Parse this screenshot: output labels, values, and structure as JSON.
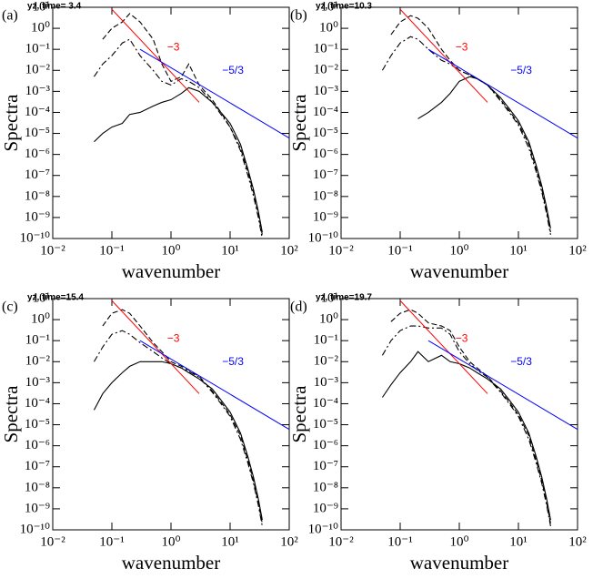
{
  "chart_data": [
    {
      "type": "line",
      "title": "yz, time= 3.4",
      "panel_label": "(a)",
      "xlabel": "wavenumber",
      "ylabel": "Spectra",
      "xlog": true,
      "ylog": true,
      "xlim": [
        0.01,
        100
      ],
      "ylim": [
        1e-10,
        10
      ],
      "xticks": [
        {
          "value": 0.01,
          "label": "10⁻²"
        },
        {
          "value": 0.1,
          "label": "10⁻¹"
        },
        {
          "value": 1,
          "label": "10⁰"
        },
        {
          "value": 10,
          "label": "10¹"
        },
        {
          "value": 100,
          "label": "10²"
        }
      ],
      "yticks": [
        {
          "value": 1e-10,
          "label": "10⁻¹⁰"
        },
        {
          "value": 1e-09,
          "label": "10⁻⁹"
        },
        {
          "value": 1e-08,
          "label": "10⁻⁸"
        },
        {
          "value": 1e-07,
          "label": "10⁻⁷"
        },
        {
          "value": 1e-06,
          "label": "10⁻⁶"
        },
        {
          "value": 1e-05,
          "label": "10⁻⁵"
        },
        {
          "value": 0.0001,
          "label": "10⁻⁴"
        },
        {
          "value": 0.001,
          "label": "10⁻³"
        },
        {
          "value": 0.01,
          "label": "10⁻²"
        },
        {
          "value": 0.1,
          "label": "10⁻¹"
        },
        {
          "value": 1,
          "label": "10⁰"
        },
        {
          "value": 10,
          "label": "10¹"
        }
      ],
      "x": [
        0.05,
        0.07,
        0.1,
        0.15,
        0.2,
        0.3,
        0.5,
        0.7,
        1,
        1.5,
        2,
        3,
        5,
        7,
        10,
        15,
        20,
        25,
        30,
        35,
        40
      ],
      "series": [
        {
          "color": "#000000",
          "dash": "none",
          "values": [
            4e-06,
            1e-05,
            2e-05,
            3e-05,
            8e-05,
            0.0001,
            0.0002,
            0.0003,
            0.0004,
            0.0008,
            0.0015,
            0.001,
            0.0003,
            0.0001,
            3e-05,
            3e-06,
            2e-07,
            2e-08,
            2e-09,
            2e-10,
            null
          ]
        },
        {
          "color": "#000000",
          "dash": "6,3",
          "values": [
            null,
            0.3,
            1,
            2,
            5,
            2,
            0.3,
            0.02,
            0.003,
            0.005,
            0.02,
            0.002,
            0.0004,
            0.0001,
            2e-05,
            2e-06,
            1.5e-07,
            1.5e-08,
            1.5e-09,
            1.5e-10,
            null
          ]
        },
        {
          "color": "#000000",
          "dash": "7,3,2,3",
          "values": [
            0.005,
            0.02,
            0.05,
            0.2,
            0.3,
            0.05,
            0.01,
            0.003,
            0.002,
            0.004,
            0.003,
            0.0015,
            0.0003,
            8e-05,
            2e-05,
            1.5e-06,
            1e-07,
            1e-08,
            1e-09,
            1e-10,
            null
          ]
        }
      ],
      "reference_lines": [
        {
          "color": "#ff0000",
          "label": "−3",
          "x": [
            0.1,
            3
          ],
          "values": [
            8,
            0.0003
          ]
        },
        {
          "color": "#0000ff",
          "label": "−5/3",
          "x": [
            0.3,
            100
          ],
          "values": [
            0.1,
            6e-06
          ]
        }
      ]
    },
    {
      "type": "line",
      "title": "yz, time=10.3",
      "panel_label": "(b)",
      "xlabel": "wavenumber",
      "ylabel": "Spectra",
      "xlog": true,
      "ylog": true,
      "xlim": [
        0.01,
        100
      ],
      "ylim": [
        1e-10,
        10
      ],
      "xticks": [
        {
          "value": 0.01,
          "label": "10⁻²"
        },
        {
          "value": 0.1,
          "label": "10⁻¹"
        },
        {
          "value": 1,
          "label": "10⁰"
        },
        {
          "value": 10,
          "label": "10¹"
        },
        {
          "value": 100,
          "label": "10²"
        }
      ],
      "yticks": [
        {
          "value": 1e-10,
          "label": "10⁻¹⁰"
        },
        {
          "value": 1e-09,
          "label": "10⁻⁹"
        },
        {
          "value": 1e-08,
          "label": "10⁻⁸"
        },
        {
          "value": 1e-07,
          "label": "10⁻⁷"
        },
        {
          "value": 1e-06,
          "label": "10⁻⁶"
        },
        {
          "value": 1e-05,
          "label": "10⁻⁵"
        },
        {
          "value": 0.0001,
          "label": "10⁻⁴"
        },
        {
          "value": 0.001,
          "label": "10⁻³"
        },
        {
          "value": 0.01,
          "label": "10⁻²"
        },
        {
          "value": 0.1,
          "label": "10⁻¹"
        },
        {
          "value": 1,
          "label": "10⁰"
        },
        {
          "value": 10,
          "label": "10¹"
        }
      ],
      "x": [
        0.05,
        0.07,
        0.1,
        0.15,
        0.2,
        0.3,
        0.5,
        0.7,
        1,
        1.5,
        2,
        3,
        5,
        7,
        10,
        15,
        20,
        25,
        30,
        35,
        40
      ],
      "series": [
        {
          "color": "#000000",
          "dash": "none",
          "values": [
            null,
            null,
            null,
            null,
            5e-05,
            0.0001,
            0.0003,
            0.0008,
            0.003,
            0.005,
            0.004,
            0.002,
            0.0005,
            0.00015,
            4e-05,
            4e-06,
            3e-07,
            3e-08,
            3e-09,
            3e-10,
            null
          ]
        },
        {
          "color": "#000000",
          "dash": "6,3",
          "values": [
            null,
            0.5,
            2,
            4,
            3,
            1,
            0.1,
            0.03,
            0.01,
            0.006,
            0.004,
            0.002,
            0.0004,
            0.00012,
            3e-05,
            3e-06,
            2e-07,
            2e-08,
            2e-09,
            2e-10,
            null
          ]
        },
        {
          "color": "#000000",
          "dash": "7,3,2,3",
          "values": [
            0.01,
            0.05,
            0.2,
            0.4,
            0.3,
            0.1,
            0.03,
            0.02,
            0.01,
            0.006,
            0.004,
            0.002,
            0.00035,
            0.0001,
            2.5e-05,
            2e-06,
            1.5e-07,
            1.5e-08,
            1.5e-09,
            1.5e-10,
            null
          ]
        }
      ],
      "reference_lines": [
        {
          "color": "#ff0000",
          "label": "−3",
          "x": [
            0.1,
            3
          ],
          "values": [
            8,
            0.0003
          ]
        },
        {
          "color": "#0000ff",
          "label": "−5/3",
          "x": [
            0.3,
            100
          ],
          "values": [
            0.1,
            6e-06
          ]
        }
      ]
    },
    {
      "type": "line",
      "title": "yz, time=15.4",
      "panel_label": "(c)",
      "xlabel": "wavenumber",
      "ylabel": "Spectra",
      "xlog": true,
      "ylog": true,
      "xlim": [
        0.01,
        100
      ],
      "ylim": [
        1e-10,
        10
      ],
      "xticks": [
        {
          "value": 0.01,
          "label": "10⁻²"
        },
        {
          "value": 0.1,
          "label": "10⁻¹"
        },
        {
          "value": 1,
          "label": "10⁰"
        },
        {
          "value": 10,
          "label": "10¹"
        },
        {
          "value": 100,
          "label": "10²"
        }
      ],
      "yticks": [
        {
          "value": 1e-10,
          "label": "10⁻¹⁰"
        },
        {
          "value": 1e-09,
          "label": "10⁻⁹"
        },
        {
          "value": 1e-08,
          "label": "10⁻⁸"
        },
        {
          "value": 1e-07,
          "label": "10⁻⁷"
        },
        {
          "value": 1e-06,
          "label": "10⁻⁶"
        },
        {
          "value": 1e-05,
          "label": "10⁻⁵"
        },
        {
          "value": 0.0001,
          "label": "10⁻⁴"
        },
        {
          "value": 0.001,
          "label": "10⁻³"
        },
        {
          "value": 0.01,
          "label": "10⁻²"
        },
        {
          "value": 0.1,
          "label": "10⁻¹"
        },
        {
          "value": 1,
          "label": "10⁰"
        },
        {
          "value": 10,
          "label": "10¹"
        }
      ],
      "x": [
        0.05,
        0.07,
        0.1,
        0.15,
        0.2,
        0.3,
        0.5,
        0.7,
        1,
        1.5,
        2,
        3,
        5,
        7,
        10,
        15,
        20,
        25,
        30,
        35,
        40
      ],
      "series": [
        {
          "color": "#000000",
          "dash": "none",
          "values": [
            5e-05,
            0.0003,
            0.001,
            0.003,
            0.006,
            0.01,
            0.01,
            0.01,
            0.008,
            0.005,
            0.003,
            0.0015,
            0.0005,
            0.00015,
            4e-05,
            4e-06,
            3e-07,
            3e-08,
            3e-09,
            3e-10,
            null
          ]
        },
        {
          "color": "#000000",
          "dash": "6,3",
          "values": [
            null,
            0.5,
            2,
            3,
            2,
            0.5,
            0.08,
            0.03,
            0.01,
            0.006,
            0.004,
            0.002,
            0.0004,
            0.00012,
            3e-05,
            3e-06,
            2e-07,
            2e-08,
            2e-09,
            2e-10,
            null
          ]
        },
        {
          "color": "#000000",
          "dash": "7,3,2,3",
          "values": [
            0.01,
            0.05,
            0.2,
            0.3,
            0.2,
            0.08,
            0.03,
            0.015,
            0.008,
            0.005,
            0.0035,
            0.0018,
            0.00035,
            0.0001,
            2.5e-05,
            2e-06,
            1.5e-07,
            1.5e-08,
            1.5e-09,
            1.5e-10,
            null
          ]
        }
      ],
      "reference_lines": [
        {
          "color": "#ff0000",
          "label": "−3",
          "x": [
            0.1,
            3
          ],
          "values": [
            8,
            0.0003
          ]
        },
        {
          "color": "#0000ff",
          "label": "−5/3",
          "x": [
            0.3,
            100
          ],
          "values": [
            0.1,
            6e-06
          ]
        }
      ]
    },
    {
      "type": "line",
      "title": "yz, time=19.7",
      "panel_label": "(d)",
      "xlabel": "wavenumber",
      "ylabel": "Spectra",
      "xlog": true,
      "ylog": true,
      "xlim": [
        0.01,
        100
      ],
      "ylim": [
        1e-10,
        10
      ],
      "xticks": [
        {
          "value": 0.01,
          "label": "10⁻²"
        },
        {
          "value": 0.1,
          "label": "10⁻¹"
        },
        {
          "value": 1,
          "label": "10⁰"
        },
        {
          "value": 10,
          "label": "10¹"
        },
        {
          "value": 100,
          "label": "10²"
        }
      ],
      "yticks": [
        {
          "value": 1e-10,
          "label": "10⁻¹⁰"
        },
        {
          "value": 1e-09,
          "label": "10⁻⁹"
        },
        {
          "value": 1e-08,
          "label": "10⁻⁸"
        },
        {
          "value": 1e-07,
          "label": "10⁻⁷"
        },
        {
          "value": 1e-06,
          "label": "10⁻⁶"
        },
        {
          "value": 1e-05,
          "label": "10⁻⁵"
        },
        {
          "value": 0.0001,
          "label": "10⁻⁴"
        },
        {
          "value": 0.001,
          "label": "10⁻³"
        },
        {
          "value": 0.01,
          "label": "10⁻²"
        },
        {
          "value": 0.1,
          "label": "10⁻¹"
        },
        {
          "value": 1,
          "label": "10⁰"
        },
        {
          "value": 10,
          "label": "10¹"
        }
      ],
      "x": [
        0.05,
        0.07,
        0.1,
        0.15,
        0.2,
        0.3,
        0.5,
        0.7,
        1,
        1.5,
        2,
        3,
        5,
        7,
        10,
        15,
        20,
        25,
        30,
        35,
        40
      ],
      "series": [
        {
          "color": "#000000",
          "dash": "none",
          "values": [
            0.0002,
            0.0008,
            0.003,
            0.01,
            0.03,
            0.01,
            0.02,
            0.01,
            0.008,
            0.005,
            0.003,
            0.0015,
            0.0005,
            0.00015,
            4e-05,
            4e-06,
            3e-07,
            3e-08,
            3e-09,
            3e-10,
            null
          ]
        },
        {
          "color": "#000000",
          "dash": "6,3",
          "values": [
            null,
            0.8,
            2,
            3,
            2,
            0.7,
            0.5,
            0.3,
            0.05,
            0.01,
            0.005,
            0.002,
            0.0004,
            0.00012,
            3e-05,
            3e-06,
            2e-07,
            2e-08,
            2e-09,
            2e-10,
            null
          ]
        },
        {
          "color": "#000000",
          "dash": "7,3,2,3",
          "values": [
            0.02,
            0.1,
            0.3,
            0.5,
            0.5,
            0.4,
            0.4,
            0.2,
            0.03,
            0.008,
            0.004,
            0.0018,
            0.00035,
            0.0001,
            2.5e-05,
            2e-06,
            1.5e-07,
            1.5e-08,
            1.5e-09,
            1.5e-10,
            null
          ]
        }
      ],
      "reference_lines": [
        {
          "color": "#ff0000",
          "label": "−3",
          "x": [
            0.1,
            3
          ],
          "values": [
            8,
            0.0003
          ]
        },
        {
          "color": "#0000ff",
          "label": "−5/3",
          "x": [
            0.3,
            100
          ],
          "values": [
            0.1,
            6e-06
          ]
        }
      ]
    }
  ]
}
